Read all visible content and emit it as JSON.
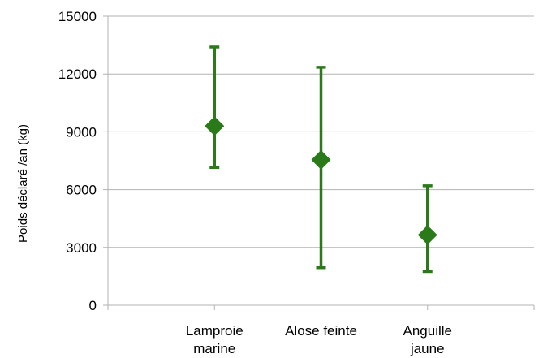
{
  "chart_data": {
    "type": "scatter",
    "title": "",
    "xlabel": "",
    "ylabel": "Poids déclaré /an (kg)",
    "ylim": [
      0,
      15000
    ],
    "yticks": [
      0,
      3000,
      6000,
      9000,
      12000,
      15000
    ],
    "grid": true,
    "legend": "none",
    "marker": "diamond",
    "colors": {
      "series": "#2a7a1a",
      "grid": "#b3b3b3",
      "axis": "#b3b3b3"
    },
    "categories": [
      {
        "lines": [
          "Lamproie",
          "marine"
        ]
      },
      {
        "lines": [
          "Alose feinte"
        ]
      },
      {
        "lines": [
          "Anguille",
          "jaune"
        ]
      }
    ],
    "series": [
      {
        "values": [
          9300,
          7550,
          3650
        ],
        "error_low": [
          7150,
          1950,
          1750
        ],
        "error_high": [
          13400,
          12350,
          6200
        ]
      }
    ]
  }
}
